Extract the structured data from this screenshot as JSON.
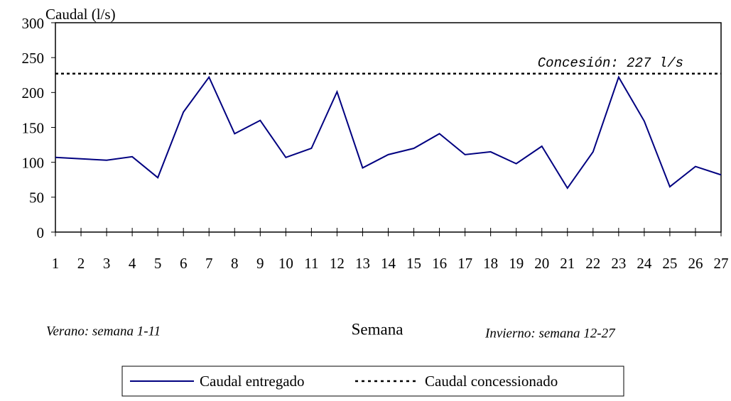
{
  "chart_data": {
    "type": "line",
    "y_label": "Caudal (l/s)",
    "x_label": "Semana",
    "x": [
      1,
      2,
      3,
      4,
      5,
      6,
      7,
      8,
      9,
      10,
      11,
      12,
      13,
      14,
      15,
      16,
      17,
      18,
      19,
      20,
      21,
      22,
      23,
      24,
      25,
      26,
      27
    ],
    "xlim": [
      1,
      27
    ],
    "xticks": [
      1,
      2,
      3,
      4,
      5,
      6,
      7,
      8,
      9,
      10,
      11,
      12,
      13,
      14,
      15,
      16,
      17,
      18,
      19,
      20,
      21,
      22,
      23,
      24,
      25,
      26,
      27
    ],
    "ylim": [
      0,
      300
    ],
    "yticks": [
      0,
      50,
      100,
      150,
      200,
      250,
      300
    ],
    "series": [
      {
        "name": "Caudal entregado",
        "color": "#000080",
        "values": [
          107,
          105,
          103,
          108,
          78,
          172,
          222,
          141,
          160,
          107,
          120,
          201,
          92,
          111,
          120,
          141,
          111,
          115,
          98,
          123,
          63,
          115,
          222,
          159,
          65,
          94,
          82
        ]
      }
    ],
    "reference_line": {
      "name": "Caudal concessionado",
      "value": 227,
      "label": "Concesión: 227 l/s",
      "color": "#000000"
    },
    "annotations": [
      "Verano: semana 1-11",
      "Invierno: semana 12-27"
    ]
  }
}
